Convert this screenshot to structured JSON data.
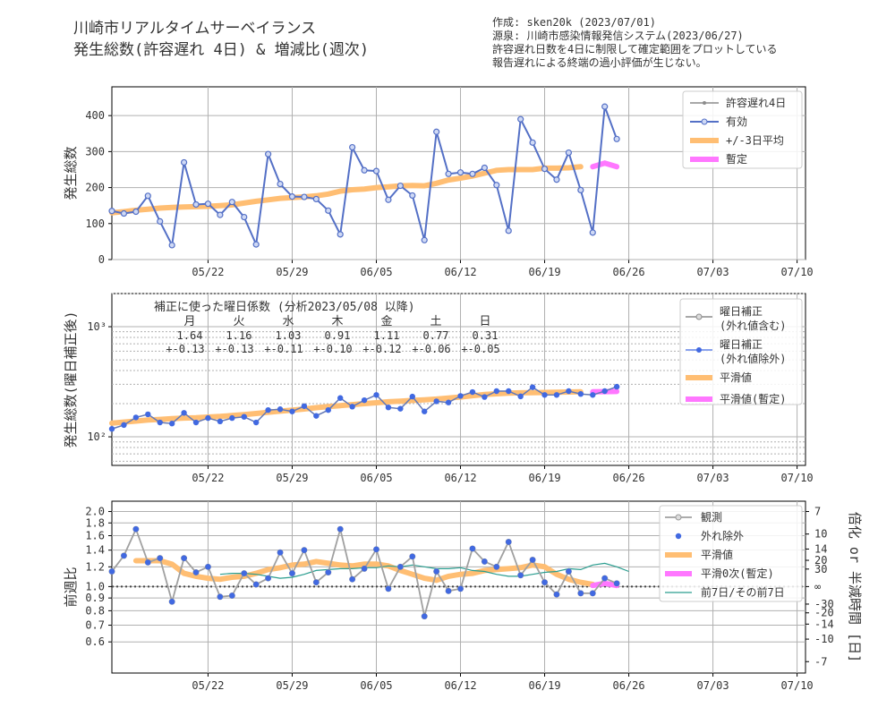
{
  "header": {
    "title_lines": [
      "川崎市リアルタイムサーベイランス",
      "発生総数(許容遅れ 4日) & 増減比(週次)"
    ],
    "info_lines": [
      "作成: sken20k (2023/07/01)",
      "源泉: 川崎市感染情報発信システム(2023/06/27)",
      "許容遅れ日数を4日に制限して確定範囲をプロットしている",
      "報告遅れによる終端の過小評価が生じない。"
    ]
  },
  "x_ticks": [
    "05/22",
    "05/29",
    "06/05",
    "06/12",
    "06/19",
    "06/26",
    "07/03",
    "07/10"
  ],
  "chart_data": [
    {
      "type": "line",
      "ylabel": "発生総数",
      "ylim": [
        0,
        480
      ],
      "yticks": [
        "0",
        "100",
        "200",
        "300",
        "400"
      ],
      "x_start": "05/14",
      "series": [
        {
          "name": "許容遅れ4日",
          "values": [
            135,
            128,
            133,
            177,
            106,
            40,
            270,
            153,
            155,
            124,
            160,
            118,
            42,
            293,
            210,
            175,
            174,
            168,
            136,
            70,
            312,
            248,
            246,
            166,
            205,
            178,
            54,
            355,
            238,
            242,
            238,
            255,
            207,
            80,
            390,
            325,
            252,
            222,
            297,
            193,
            75,
            425,
            335
          ]
        },
        {
          "name": "有効",
          "values": [
            135,
            128,
            133,
            177,
            106,
            40,
            270,
            153,
            155,
            124,
            160,
            118,
            42,
            293,
            210,
            175,
            174,
            168,
            136,
            70,
            312,
            248,
            246,
            166,
            205,
            178,
            54,
            355,
            238,
            242,
            238,
            255,
            207,
            80,
            390,
            325,
            252,
            222,
            297,
            193,
            75,
            425,
            335
          ]
        },
        {
          "name": "+/-3日平均",
          "start_index": 0,
          "values": [
            130,
            133,
            137,
            140,
            143,
            145,
            146,
            147,
            148,
            150,
            152,
            157,
            162,
            166,
            170,
            172,
            174,
            177,
            182,
            190,
            194,
            196,
            200,
            202,
            205,
            206,
            205,
            212,
            221,
            226,
            232,
            240,
            248,
            250,
            250,
            250,
            254,
            254,
            255,
            258
          ]
        },
        {
          "name": "暫定",
          "start_index": 40,
          "values": [
            258,
            268,
            258
          ]
        }
      ]
    },
    {
      "type": "line",
      "ylabel": "発生総数(曜日補正後)",
      "scale": "log",
      "ylim": [
        55,
        2000
      ],
      "yticks": [
        "10²",
        "10³"
      ],
      "annotation": {
        "title": "補正に使った曜日係数 (分析2023/05/08 以降)",
        "days": [
          "月",
          "火",
          "水",
          "木",
          "金",
          "土",
          "日"
        ],
        "coef": [
          "1.64",
          "1.16",
          "1.03",
          "0.91",
          "1.11",
          "0.77",
          "0.31"
        ],
        "err": [
          "+-0.13",
          "+-0.13",
          "+-0.11",
          "+-0.10",
          "+-0.12",
          "+-0.06",
          "+-0.05"
        ]
      },
      "series": [
        {
          "name": "曜日補正\n(外れ値含む)",
          "values": [
            118,
            128,
            150,
            160,
            135,
            132,
            165,
            135,
            148,
            138,
            148,
            152,
            135,
            175,
            178,
            170,
            190,
            155,
            175,
            225,
            188,
            215,
            240,
            185,
            180,
            232,
            170,
            210,
            205,
            235,
            255,
            230,
            260,
            260,
            233,
            282,
            240,
            240,
            260,
            245,
            240,
            260,
            285
          ]
        },
        {
          "name": "曜日補正\n(外れ値除外)",
          "values": [
            118,
            128,
            150,
            160,
            135,
            132,
            165,
            135,
            148,
            138,
            148,
            152,
            135,
            175,
            178,
            170,
            190,
            155,
            175,
            225,
            188,
            215,
            240,
            185,
            180,
            232,
            170,
            210,
            205,
            235,
            255,
            230,
            260,
            260,
            233,
            282,
            240,
            240,
            260,
            245,
            240,
            260,
            285
          ]
        },
        {
          "name": "平滑値",
          "start_index": 0,
          "values": [
            133,
            136,
            139,
            142,
            144,
            146,
            148,
            149,
            151,
            153,
            156,
            159,
            163,
            167,
            171,
            175,
            179,
            184,
            188,
            192,
            196,
            200,
            204,
            208,
            211,
            214,
            217,
            220,
            225,
            230,
            236,
            242,
            246,
            249,
            251,
            252,
            253,
            254,
            255,
            256
          ]
        },
        {
          "name": "平滑値(暫定)",
          "start_index": 40,
          "values": [
            256,
            257,
            258
          ]
        }
      ]
    },
    {
      "type": "line",
      "ylabel": "前週比",
      "ylabel_right": "倍化 or 半減時間 [日]",
      "scale": "log",
      "ylim": [
        0.45,
        2.2
      ],
      "yticks": [
        "0.6",
        "0.7",
        "0.8",
        "0.9",
        "1.0",
        "1.2",
        "1.4",
        "1.6",
        "1.8",
        "2.0"
      ],
      "right_ticks": [
        "7",
        "10",
        "14",
        "20",
        "30",
        "∞",
        "-30",
        "-20",
        "-14",
        "-10",
        "-7"
      ],
      "series": [
        {
          "name": "観測",
          "values": [
            1.15,
            1.33,
            1.7,
            1.25,
            1.3,
            0.87,
            1.3,
            1.14,
            1.2,
            0.91,
            0.92,
            1.13,
            1.02,
            1.08,
            1.37,
            1.13,
            1.4,
            1.04,
            1.14,
            1.7,
            1.07,
            1.18,
            1.41,
            0.98,
            1.2,
            1.32,
            0.76,
            1.15,
            0.96,
            0.98,
            1.42,
            1.26,
            1.2,
            1.51,
            1.11,
            1.28,
            1.04,
            0.93,
            1.15,
            0.94,
            0.94,
            1.08,
            1.03
          ]
        },
        {
          "name": "外れ除外",
          "values": [
            1.15,
            1.33,
            1.7,
            1.25,
            1.3,
            0.87,
            1.3,
            1.14,
            1.2,
            0.91,
            0.92,
            1.13,
            1.02,
            1.08,
            1.37,
            1.13,
            1.4,
            1.04,
            1.14,
            1.7,
            1.07,
            1.18,
            1.41,
            0.98,
            1.2,
            1.32,
            0.76,
            1.15,
            0.96,
            0.98,
            1.42,
            1.26,
            1.2,
            1.51,
            1.11,
            1.28,
            1.04,
            0.93,
            1.15,
            0.94,
            0.94,
            1.08,
            1.03
          ]
        },
        {
          "name": "平滑値",
          "start_index": 2,
          "values": [
            1.27,
            1.27,
            1.27,
            1.23,
            1.13,
            1.1,
            1.08,
            1.07,
            1.09,
            1.1,
            1.13,
            1.17,
            1.19,
            1.22,
            1.23,
            1.26,
            1.24,
            1.22,
            1.21,
            1.23,
            1.23,
            1.21,
            1.16,
            1.12,
            1.08,
            1.06,
            1.1,
            1.12,
            1.13,
            1.16,
            1.17,
            1.18,
            1.19,
            1.22,
            1.2,
            1.12,
            1.07,
            1.04,
            1.02
          ]
        },
        {
          "name": "平滑0次(暫定)",
          "start_index": 40,
          "values": [
            1.01,
            1.03,
            1.01
          ]
        },
        {
          "name": "前7日/その前7日",
          "start_index": 9,
          "values": [
            1.12,
            1.13,
            1.13,
            1.12,
            1.1,
            1.08,
            1.09,
            1.12,
            1.16,
            1.17,
            1.18,
            1.18,
            1.19,
            1.19,
            1.21,
            1.2,
            1.22,
            1.2,
            1.18,
            1.18,
            1.19,
            1.16,
            1.15,
            1.12,
            1.1,
            1.1,
            1.12,
            1.14,
            1.15,
            1.18,
            1.17,
            1.22,
            1.24,
            1.2,
            1.15
          ]
        }
      ]
    }
  ]
}
